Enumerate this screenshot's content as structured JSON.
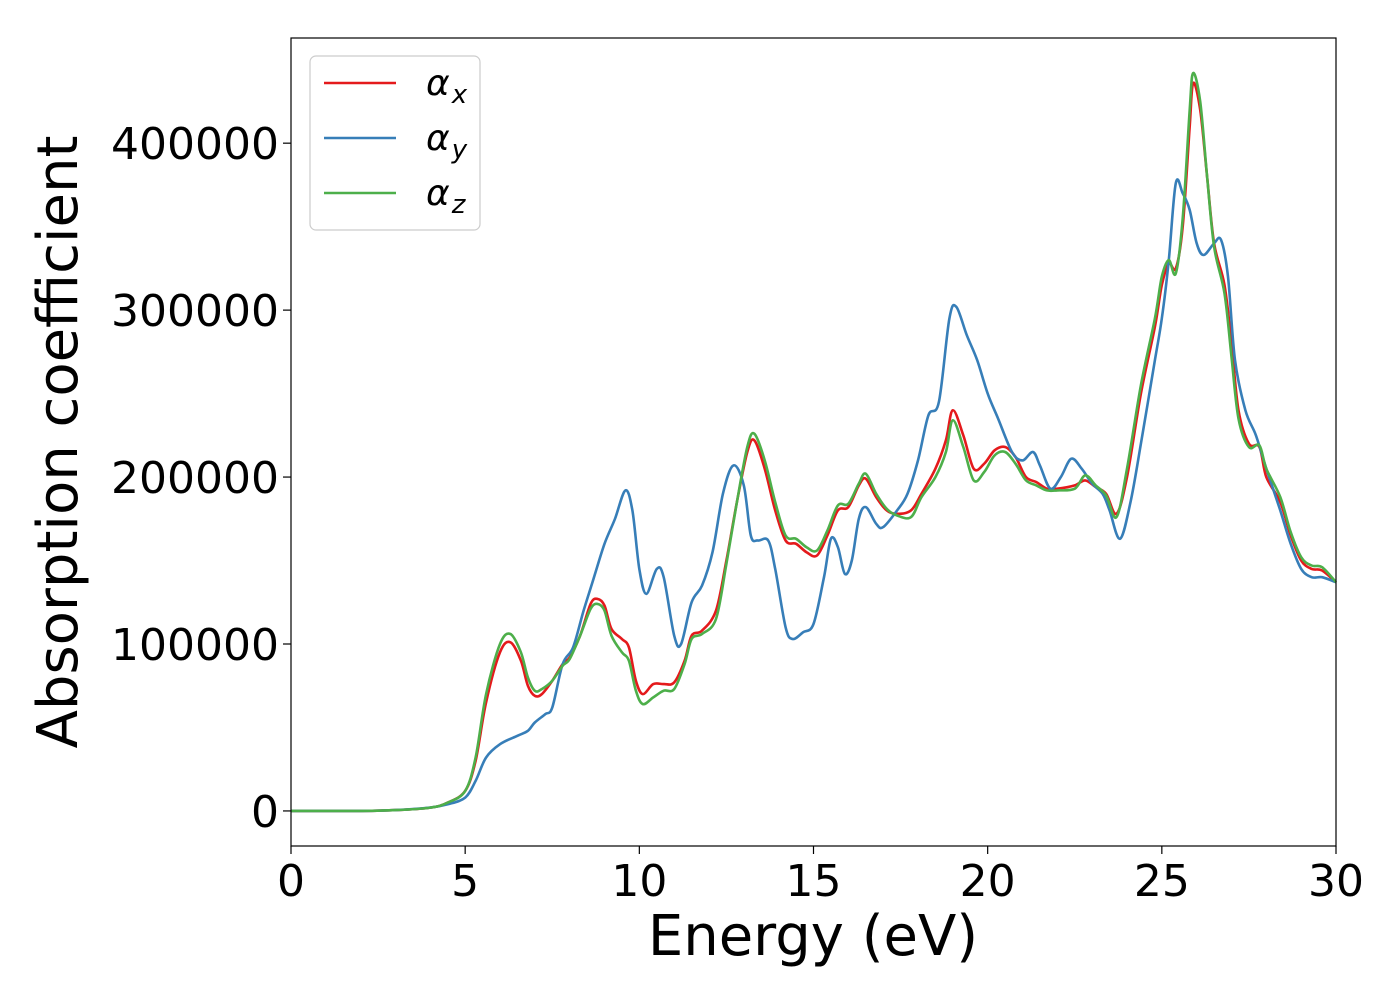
{
  "chart_data": {
    "type": "line",
    "title": "",
    "xlabel": "Energy (eV)",
    "ylabel": "Absorption coefficient",
    "xlim": [
      0,
      30
    ],
    "ylim": [
      -21000,
      463000
    ],
    "xticks": [
      0,
      5,
      10,
      15,
      20,
      25,
      30
    ],
    "xtick_labels": [
      "0",
      "5",
      "10",
      "15",
      "20",
      "25",
      "30"
    ],
    "yticks": [
      0,
      100000,
      200000,
      300000,
      400000
    ],
    "ytick_labels": [
      "0",
      "100000",
      "200000",
      "300000",
      "400000"
    ],
    "grid": false,
    "legend_position": "top-left",
    "series": [
      {
        "name": "α_x",
        "label_main": "α",
        "label_sub": "x",
        "color": "#e41a1c",
        "points": [
          [
            0,
            0
          ],
          [
            1,
            0
          ],
          [
            2,
            0
          ],
          [
            3,
            500
          ],
          [
            4,
            2000
          ],
          [
            4.5,
            5000
          ],
          [
            5,
            12000
          ],
          [
            5.3,
            30000
          ],
          [
            5.6,
            65000
          ],
          [
            6.0,
            95000
          ],
          [
            6.3,
            101000
          ],
          [
            6.6,
            90000
          ],
          [
            6.8,
            75000
          ],
          [
            7.0,
            69000
          ],
          [
            7.2,
            70000
          ],
          [
            7.5,
            78000
          ],
          [
            7.8,
            88000
          ],
          [
            8.0,
            92000
          ],
          [
            8.3,
            105000
          ],
          [
            8.6,
            124000
          ],
          [
            8.8,
            127000
          ],
          [
            9.0,
            123000
          ],
          [
            9.2,
            109000
          ],
          [
            9.5,
            103000
          ],
          [
            9.7,
            98000
          ],
          [
            9.9,
            78000
          ],
          [
            10.1,
            70000
          ],
          [
            10.4,
            76000
          ],
          [
            10.7,
            76000
          ],
          [
            11.0,
            77000
          ],
          [
            11.3,
            90000
          ],
          [
            11.5,
            105000
          ],
          [
            11.8,
            108000
          ],
          [
            12.2,
            120000
          ],
          [
            12.5,
            150000
          ],
          [
            12.8,
            185000
          ],
          [
            13.1,
            215000
          ],
          [
            13.3,
            222000
          ],
          [
            13.6,
            205000
          ],
          [
            13.9,
            180000
          ],
          [
            14.2,
            162000
          ],
          [
            14.5,
            160000
          ],
          [
            14.8,
            155000
          ],
          [
            15.1,
            153000
          ],
          [
            15.4,
            165000
          ],
          [
            15.7,
            180000
          ],
          [
            16.0,
            182000
          ],
          [
            16.3,
            195000
          ],
          [
            16.5,
            199000
          ],
          [
            16.8,
            188000
          ],
          [
            17.1,
            180000
          ],
          [
            17.4,
            178000
          ],
          [
            17.8,
            180000
          ],
          [
            18.1,
            190000
          ],
          [
            18.5,
            205000
          ],
          [
            18.8,
            222000
          ],
          [
            19.0,
            240000
          ],
          [
            19.3,
            225000
          ],
          [
            19.6,
            205000
          ],
          [
            19.9,
            208000
          ],
          [
            20.2,
            216000
          ],
          [
            20.5,
            218000
          ],
          [
            20.8,
            212000
          ],
          [
            21.1,
            200000
          ],
          [
            21.4,
            197000
          ],
          [
            21.7,
            193000
          ],
          [
            22.0,
            193000
          ],
          [
            22.5,
            195000
          ],
          [
            22.8,
            198000
          ],
          [
            23.1,
            194000
          ],
          [
            23.4,
            190000
          ],
          [
            23.7,
            178000
          ],
          [
            24.0,
            200000
          ],
          [
            24.4,
            250000
          ],
          [
            24.8,
            290000
          ],
          [
            25.0,
            315000
          ],
          [
            25.2,
            328000
          ],
          [
            25.4,
            325000
          ],
          [
            25.6,
            350000
          ],
          [
            25.8,
            410000
          ],
          [
            25.9,
            436000
          ],
          [
            26.1,
            420000
          ],
          [
            26.3,
            380000
          ],
          [
            26.5,
            340000
          ],
          [
            26.8,
            315000
          ],
          [
            27.0,
            280000
          ],
          [
            27.2,
            240000
          ],
          [
            27.5,
            220000
          ],
          [
            27.8,
            218000
          ],
          [
            28.0,
            200000
          ],
          [
            28.4,
            185000
          ],
          [
            28.7,
            165000
          ],
          [
            29.0,
            150000
          ],
          [
            29.3,
            145000
          ],
          [
            29.6,
            144000
          ],
          [
            30.0,
            137000
          ]
        ]
      },
      {
        "name": "α_y",
        "label_main": "α",
        "label_sub": "y",
        "color": "#377eb8",
        "points": [
          [
            0,
            0
          ],
          [
            1,
            0
          ],
          [
            2,
            0
          ],
          [
            3,
            500
          ],
          [
            4,
            2000
          ],
          [
            4.5,
            4000
          ],
          [
            5,
            8000
          ],
          [
            5.3,
            18000
          ],
          [
            5.6,
            32000
          ],
          [
            6.0,
            40000
          ],
          [
            6.5,
            45000
          ],
          [
            6.8,
            48000
          ],
          [
            7.0,
            53000
          ],
          [
            7.3,
            58000
          ],
          [
            7.5,
            62000
          ],
          [
            7.8,
            88000
          ],
          [
            8.1,
            98000
          ],
          [
            8.4,
            120000
          ],
          [
            8.7,
            140000
          ],
          [
            9.0,
            160000
          ],
          [
            9.3,
            175000
          ],
          [
            9.6,
            192000
          ],
          [
            9.8,
            180000
          ],
          [
            10.0,
            145000
          ],
          [
            10.2,
            130000
          ],
          [
            10.5,
            145000
          ],
          [
            10.7,
            140000
          ],
          [
            11.0,
            105000
          ],
          [
            11.2,
            100000
          ],
          [
            11.5,
            125000
          ],
          [
            11.8,
            135000
          ],
          [
            12.1,
            155000
          ],
          [
            12.4,
            190000
          ],
          [
            12.7,
            207000
          ],
          [
            13.0,
            195000
          ],
          [
            13.2,
            165000
          ],
          [
            13.4,
            162000
          ],
          [
            13.7,
            162000
          ],
          [
            13.9,
            145000
          ],
          [
            14.2,
            110000
          ],
          [
            14.4,
            103000
          ],
          [
            14.7,
            107000
          ],
          [
            15.0,
            112000
          ],
          [
            15.3,
            140000
          ],
          [
            15.5,
            163000
          ],
          [
            15.7,
            158000
          ],
          [
            15.9,
            142000
          ],
          [
            16.1,
            150000
          ],
          [
            16.3,
            175000
          ],
          [
            16.5,
            182000
          ],
          [
            16.8,
            172000
          ],
          [
            17.0,
            170000
          ],
          [
            17.4,
            180000
          ],
          [
            17.7,
            190000
          ],
          [
            18.0,
            210000
          ],
          [
            18.3,
            237000
          ],
          [
            18.6,
            245000
          ],
          [
            18.9,
            295000
          ],
          [
            19.1,
            302000
          ],
          [
            19.4,
            285000
          ],
          [
            19.7,
            270000
          ],
          [
            20.0,
            250000
          ],
          [
            20.3,
            235000
          ],
          [
            20.7,
            215000
          ],
          [
            21.0,
            210000
          ],
          [
            21.3,
            215000
          ],
          [
            21.5,
            207000
          ],
          [
            21.8,
            193000
          ],
          [
            22.1,
            200000
          ],
          [
            22.4,
            211000
          ],
          [
            22.7,
            205000
          ],
          [
            23.0,
            196000
          ],
          [
            23.3,
            190000
          ],
          [
            23.5,
            180000
          ],
          [
            23.8,
            163000
          ],
          [
            24.1,
            185000
          ],
          [
            24.4,
            220000
          ],
          [
            24.8,
            270000
          ],
          [
            25.0,
            295000
          ],
          [
            25.2,
            330000
          ],
          [
            25.4,
            376000
          ],
          [
            25.6,
            370000
          ],
          [
            25.8,
            360000
          ],
          [
            26.0,
            340000
          ],
          [
            26.2,
            333000
          ],
          [
            26.5,
            340000
          ],
          [
            26.7,
            342000
          ],
          [
            26.9,
            320000
          ],
          [
            27.1,
            270000
          ],
          [
            27.4,
            240000
          ],
          [
            27.7,
            225000
          ],
          [
            28.0,
            205000
          ],
          [
            28.4,
            180000
          ],
          [
            28.7,
            160000
          ],
          [
            29.0,
            145000
          ],
          [
            29.3,
            140000
          ],
          [
            29.6,
            140000
          ],
          [
            30.0,
            137000
          ]
        ]
      },
      {
        "name": "α_z",
        "label_main": "α",
        "label_sub": "z",
        "color": "#4daf4a",
        "points": [
          [
            0,
            0
          ],
          [
            1,
            0
          ],
          [
            2,
            0
          ],
          [
            3,
            500
          ],
          [
            4,
            2000
          ],
          [
            4.5,
            5000
          ],
          [
            5,
            12000
          ],
          [
            5.3,
            32000
          ],
          [
            5.6,
            70000
          ],
          [
            6.0,
            100000
          ],
          [
            6.3,
            106000
          ],
          [
            6.6,
            95000
          ],
          [
            6.8,
            80000
          ],
          [
            7.0,
            72000
          ],
          [
            7.2,
            73000
          ],
          [
            7.5,
            78000
          ],
          [
            7.8,
            87000
          ],
          [
            8.0,
            91000
          ],
          [
            8.3,
            105000
          ],
          [
            8.6,
            121000
          ],
          [
            8.8,
            124000
          ],
          [
            9.0,
            120000
          ],
          [
            9.2,
            105000
          ],
          [
            9.5,
            95000
          ],
          [
            9.7,
            90000
          ],
          [
            9.9,
            72000
          ],
          [
            10.1,
            64000
          ],
          [
            10.4,
            68000
          ],
          [
            10.7,
            72000
          ],
          [
            11.0,
            73000
          ],
          [
            11.3,
            88000
          ],
          [
            11.5,
            103000
          ],
          [
            11.8,
            106000
          ],
          [
            12.2,
            115000
          ],
          [
            12.5,
            148000
          ],
          [
            12.8,
            185000
          ],
          [
            13.1,
            218000
          ],
          [
            13.3,
            226000
          ],
          [
            13.6,
            210000
          ],
          [
            13.9,
            185000
          ],
          [
            14.2,
            165000
          ],
          [
            14.5,
            163000
          ],
          [
            14.8,
            158000
          ],
          [
            15.1,
            156000
          ],
          [
            15.4,
            168000
          ],
          [
            15.7,
            183000
          ],
          [
            16.0,
            184000
          ],
          [
            16.3,
            196000
          ],
          [
            16.5,
            202000
          ],
          [
            16.8,
            190000
          ],
          [
            17.1,
            181000
          ],
          [
            17.4,
            177000
          ],
          [
            17.8,
            176000
          ],
          [
            18.1,
            188000
          ],
          [
            18.5,
            200000
          ],
          [
            18.8,
            215000
          ],
          [
            19.0,
            234000
          ],
          [
            19.3,
            218000
          ],
          [
            19.6,
            198000
          ],
          [
            19.9,
            203000
          ],
          [
            20.2,
            213000
          ],
          [
            20.5,
            215000
          ],
          [
            20.8,
            208000
          ],
          [
            21.1,
            198000
          ],
          [
            21.4,
            195000
          ],
          [
            21.7,
            192000
          ],
          [
            22.0,
            192000
          ],
          [
            22.5,
            193000
          ],
          [
            22.8,
            201000
          ],
          [
            23.1,
            195000
          ],
          [
            23.4,
            189000
          ],
          [
            23.7,
            176000
          ],
          [
            24.0,
            205000
          ],
          [
            24.4,
            255000
          ],
          [
            24.8,
            295000
          ],
          [
            25.0,
            320000
          ],
          [
            25.2,
            330000
          ],
          [
            25.4,
            322000
          ],
          [
            25.6,
            355000
          ],
          [
            25.8,
            420000
          ],
          [
            25.9,
            442000
          ],
          [
            26.1,
            425000
          ],
          [
            26.3,
            380000
          ],
          [
            26.5,
            338000
          ],
          [
            26.8,
            310000
          ],
          [
            27.0,
            272000
          ],
          [
            27.2,
            235000
          ],
          [
            27.5,
            218000
          ],
          [
            27.8,
            219000
          ],
          [
            28.0,
            205000
          ],
          [
            28.4,
            188000
          ],
          [
            28.7,
            167000
          ],
          [
            29.0,
            152000
          ],
          [
            29.3,
            147000
          ],
          [
            29.6,
            146000
          ],
          [
            30.0,
            137000
          ]
        ]
      }
    ]
  }
}
